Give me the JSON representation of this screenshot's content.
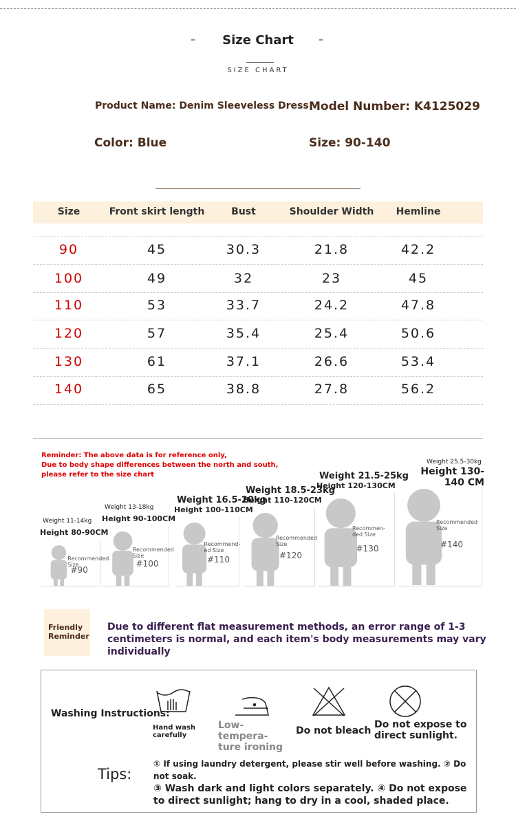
{
  "header": {
    "title": "Size Chart",
    "subtitle": "SIZE CHART"
  },
  "product": {
    "name": "Product Name: Denim Sleeveless Dress",
    "model": "Model Number: K4125029",
    "color": "Color: Blue",
    "size": "Size: 90-140"
  },
  "table": {
    "headers": [
      "Size",
      "Front skirt length",
      "Bust",
      "Shoulder Width",
      "Hemline"
    ],
    "rows": [
      [
        90,
        45,
        30.3,
        21.8,
        42.2
      ],
      [
        100,
        49,
        32,
        23,
        45
      ],
      [
        110,
        53,
        33.7,
        24.2,
        47.8
      ],
      [
        120,
        57,
        35.4,
        25.4,
        50.6
      ],
      [
        130,
        61,
        37.1,
        26.6,
        53.4
      ],
      [
        140,
        65,
        38.8,
        27.8,
        56.2
      ]
    ]
  },
  "reminder": {
    "lines": [
      "Reminder: The above data is for reference only,",
      "Due to body shape differences between the north and south, please refer to the size chart"
    ]
  },
  "figures": [
    {
      "weight": "Weight 11-14kg",
      "height": "Height 80-90CM",
      "recommend": "Recommended Size",
      "size": "#90"
    },
    {
      "weight": "Weight 13-18kg",
      "height": "Height 90-100CM",
      "recommend": "Recommended Size",
      "size": "#100"
    },
    {
      "weight": "Weight 16.5-20kg",
      "height": "Height 100-110CM",
      "recommend": "Recommend-ed Size",
      "size": "#110"
    },
    {
      "weight": "Weight 18.5-23kg",
      "height": "Height 110-120CM",
      "recommend": "Recommended Size",
      "size": "#120"
    },
    {
      "weight": "Weight 21.5-25kg",
      "height": "Height 120-130CM",
      "recommend": "Recommen-ded Size",
      "size": "#130"
    },
    {
      "weight": "Weight 25.5-30kg",
      "height": "Height 130-140 CM",
      "recommend": "Recommended Size",
      "size": "#140"
    }
  ],
  "friendly": {
    "label": "Friendly Reminder",
    "text": "Due to different flat measurement methods, an error range of 1-3 centimeters is normal, and each item's body measurements may vary individually"
  },
  "washing": {
    "label": "Washing Instructions:",
    "items": [
      "Hand wash carefully",
      "Low-tempera-ture ironing",
      "Do not bleach",
      "Do not expose to direct sunlight."
    ]
  },
  "tips": {
    "label": "Tips:",
    "lines": [
      "① If using laundry detergent, please stir well before washing. ② Do not soak.",
      "③ Wash dark and light colors separately. ④ Do not expose to direct sunlight; hang to dry in a cool, shaded place."
    ]
  }
}
